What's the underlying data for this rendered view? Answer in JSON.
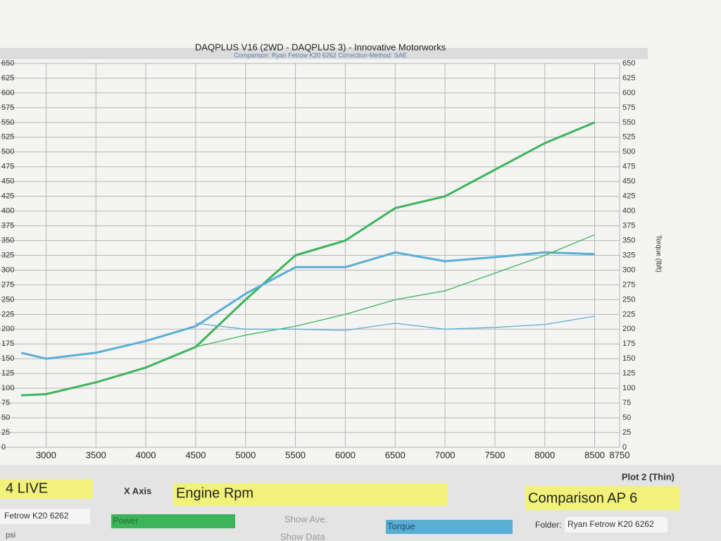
{
  "chart_data": {
    "type": "line",
    "title": "DAQPLUS V16 (2WD - DAQPLUS 3) - Innovative Motorworks",
    "subtitle": "Comparison: Ryan Fetrow K20 6262    Correction-Method: SAE",
    "y2_label": "Torque (lbft)",
    "x": [
      2750,
      3000,
      3500,
      4000,
      4500,
      5000,
      5500,
      6000,
      6500,
      7000,
      7500,
      8000,
      8500
    ],
    "xlim": [
      2750,
      8750
    ],
    "xticks": [
      3000,
      3500,
      4000,
      4500,
      5000,
      5500,
      6000,
      6500,
      7000,
      7500,
      8000,
      8500,
      8750
    ],
    "ylim": [
      0,
      650
    ],
    "yticks": [
      0,
      25,
      50,
      75,
      100,
      125,
      150,
      175,
      200,
      225,
      250,
      275,
      300,
      325,
      350,
      375,
      400,
      425,
      450,
      475,
      500,
      525,
      550,
      575,
      600,
      625,
      650
    ],
    "grid": true,
    "series": [
      {
        "name": "Power",
        "color": "#3cb55a",
        "width": 3,
        "values": [
          88,
          90,
          110,
          135,
          170,
          250,
          325,
          350,
          405,
          425,
          470,
          515,
          550
        ]
      },
      {
        "name": "Torque",
        "color": "#5aaed6",
        "width": 3,
        "values": [
          160,
          150,
          160,
          180,
          205,
          260,
          305,
          305,
          330,
          315,
          322,
          330,
          327
        ]
      },
      {
        "color": "#3cb55a",
        "width": 1.3,
        "values": [
          null,
          null,
          null,
          null,
          170,
          190,
          205,
          225,
          250,
          265,
          295,
          325,
          360
        ]
      },
      {
        "color": "#5aaed6",
        "width": 1.3,
        "values": [
          null,
          null,
          null,
          null,
          210,
          200,
          200,
          198,
          210,
          200,
          203,
          208,
          222
        ]
      }
    ]
  },
  "ui": {
    "live": "4 LIVE",
    "x_axis": "X Axis",
    "x_axis_value": "Engine Rpm",
    "plot2": "Plot 2 (Thin)",
    "comparison": "Comparison AP 6",
    "file": "Fetrow K20 6262",
    "show_ave": "Show Ave.",
    "show_data": "Show Data",
    "folder": "Folder:",
    "folder_value": "Ryan Fetrow K20 6262",
    "psi": "psi"
  }
}
